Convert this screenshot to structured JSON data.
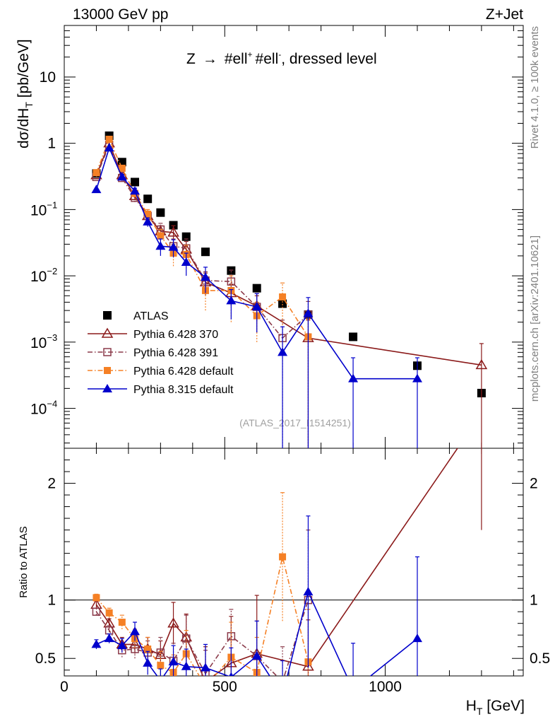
{
  "header": {
    "left": "13000 GeV pp",
    "right": "Z+Jet"
  },
  "side_text": {
    "rivet": "Rivet 4.1.0, ≥ 100k events",
    "mcplots": "mcplots.cern.ch [arXiv:2401.10621]"
  },
  "chart_data": [
    {
      "type": "scatter",
      "panel": "main",
      "title": "Z → #ell⁺ #ell⁻, dressed level",
      "title_parts": {
        "z": "Z",
        "arrow": "→",
        "ell1": "#ell",
        "sup1": "+",
        "ell2": "#ell",
        "sup2": "-",
        "rest": ", dressed level"
      },
      "ylabel": "dσ/dH_T [pb/GeV]",
      "ylabel_parts": {
        "main": "dσ/dH",
        "sub": "T",
        "unit": " [pb/GeV]"
      },
      "yscale": "log",
      "ylim": [
        2.5e-05,
        60
      ],
      "xlim": [
        0,
        1430
      ],
      "y_tick_labels": [
        {
          "value": 10,
          "text": "10"
        },
        {
          "value": 1,
          "text": "1"
        },
        {
          "value": 0.1,
          "base": "10",
          "exp": "−1"
        },
        {
          "value": 0.01,
          "base": "10",
          "exp": "−2"
        },
        {
          "value": 0.001,
          "base": "10",
          "exp": "−3"
        },
        {
          "value": 0.0001,
          "base": "10",
          "exp": "−4"
        }
      ],
      "watermark": "(ATLAS_2017_I1514251)",
      "legend_position": "bottom-left",
      "series": [
        {
          "name": "ATLAS",
          "color": "#000000",
          "marker": "square",
          "line": "none",
          "x": [
            100,
            140,
            180,
            220,
            260,
            300,
            340,
            380,
            440,
            520,
            600,
            680,
            760,
            900,
            1100,
            1300
          ],
          "y": [
            0.35,
            1.3,
            0.52,
            0.26,
            0.145,
            0.09,
            0.058,
            0.039,
            0.023,
            0.012,
            0.0065,
            0.0038,
            0.0026,
            0.0012,
            0.00044,
            0.00017
          ]
        },
        {
          "name": "Pythia 6.428 370",
          "color": "#8b1a1a",
          "marker": "open-triangle",
          "line": "solid",
          "x": [
            100,
            140,
            180,
            220,
            260,
            300,
            340,
            380,
            440,
            520,
            600,
            760,
            1300
          ],
          "y": [
            0.33,
            1.0,
            0.33,
            0.16,
            0.08,
            0.047,
            0.045,
            0.025,
            0.008,
            0.0055,
            0.0035,
            0.00115,
            0.00045
          ],
          "err_hi": [
            0.0,
            0.0,
            0.03,
            0.02,
            0.012,
            0.01,
            0.012,
            0.008,
            0.003,
            0.002,
            0.0015,
            0.001,
            0.0005
          ],
          "err_lo": [
            0.0,
            0.0,
            0.03,
            0.02,
            0.012,
            0.01,
            0.012,
            0.008,
            0.003,
            0.002,
            0.0015,
            0.00114,
            0.00045
          ]
        },
        {
          "name": "Pythia 6.428 391",
          "color": "#8b3a4a",
          "marker": "open-square",
          "line": "dashdot",
          "x": [
            100,
            140,
            180,
            220,
            260,
            300,
            340,
            380,
            440,
            520,
            600,
            680,
            760
          ],
          "y": [
            0.31,
            0.95,
            0.3,
            0.15,
            0.08,
            0.05,
            0.028,
            0.026,
            0.0085,
            0.0082,
            0.0034,
            0.00115,
            0.0026
          ],
          "err_hi": [
            0.0,
            0.0,
            0.03,
            0.02,
            0.015,
            0.012,
            0.008,
            0.01,
            0.003,
            0.004,
            0.002,
            0.001,
            0.0015
          ],
          "err_lo": [
            0.0,
            0.0,
            0.03,
            0.02,
            0.015,
            0.012,
            0.008,
            0.01,
            0.003,
            0.004,
            0.002,
            0.00114,
            0.00259
          ]
        },
        {
          "name": "Pythia 6.428 default",
          "color": "#f58025",
          "marker": "filled-square",
          "line": "dashdot",
          "x": [
            100,
            140,
            180,
            220,
            260,
            300,
            340,
            380,
            440,
            520,
            600,
            680,
            760
          ],
          "y": [
            0.36,
            1.15,
            0.42,
            0.175,
            0.085,
            0.04,
            0.022,
            0.021,
            0.006,
            0.006,
            0.0025,
            0.0048,
            0.0012
          ],
          "err_hi": [
            0.0,
            0.0,
            0.04,
            0.02,
            0.015,
            0.01,
            0.008,
            0.008,
            0.003,
            0.004,
            0.0015,
            0.003,
            0.001
          ],
          "err_lo": [
            0.0,
            0.0,
            0.04,
            0.02,
            0.015,
            0.01,
            0.008,
            0.008,
            0.003,
            0.004,
            0.0015,
            0.003,
            0.00119
          ]
        },
        {
          "name": "Pythia 8.315 default",
          "color": "#0000cc",
          "marker": "filled-triangle",
          "line": "solid",
          "x": [
            100,
            140,
            180,
            220,
            260,
            300,
            340,
            380,
            440,
            520,
            600,
            680,
            760,
            900,
            1100
          ],
          "y": [
            0.2,
            0.85,
            0.31,
            0.19,
            0.065,
            0.028,
            0.027,
            0.016,
            0.0095,
            0.0042,
            0.0034,
            0.0007,
            0.0027,
            0.00028,
            0.00028
          ],
          "err_hi": [
            0.0,
            0.0,
            0.03,
            0.02,
            0.01,
            0.008,
            0.008,
            0.006,
            0.004,
            0.002,
            0.002,
            0.001,
            0.002,
            0.0003,
            0.0003
          ],
          "err_lo": [
            0.0,
            0.0,
            0.03,
            0.02,
            0.01,
            0.008,
            0.008,
            0.006,
            0.004,
            0.002,
            0.002,
            0.00069,
            0.00269,
            0.00027,
            0.00027
          ]
        }
      ]
    },
    {
      "type": "line",
      "panel": "ratio",
      "ylabel": "Ratio to ATLAS",
      "xlabel": "H_T [GeV]",
      "xlabel_parts": {
        "main": "H",
        "sub": "T",
        "unit": " [GeV]"
      },
      "ylim": [
        0.35,
        2.3
      ],
      "xlim": [
        0,
        1430
      ],
      "y_ticks": [
        0.5,
        1,
        2
      ],
      "y_tick_labels": [
        "0.5",
        "1",
        "2"
      ],
      "x_ticks": [
        0,
        500,
        1000
      ],
      "x_tick_labels": [
        "0",
        "500",
        "1000"
      ],
      "reference_line": 1,
      "series": [
        {
          "name": "Pythia 6.428 370",
          "x": [
            100,
            140,
            180,
            220,
            260,
            300,
            340,
            380,
            440,
            520,
            600,
            760,
            1300
          ],
          "y": [
            0.96,
            0.8,
            0.62,
            0.62,
            0.58,
            0.53,
            0.8,
            0.68,
            0.3,
            0.46,
            0.54,
            0.43,
            2.6
          ],
          "err": [
            0.03,
            0.04,
            0.06,
            0.08,
            0.1,
            0.12,
            0.18,
            0.2,
            0.3,
            0.4,
            0.5,
            0.4,
            1.0
          ]
        },
        {
          "name": "Pythia 6.428 391",
          "x": [
            100,
            140,
            180,
            220,
            260,
            300,
            340,
            380,
            440,
            520,
            600,
            680,
            760
          ],
          "y": [
            0.9,
            0.74,
            0.57,
            0.58,
            0.55,
            0.55,
            0.48,
            0.67,
            0.37,
            0.69,
            0.52,
            0.3,
            1.0
          ],
          "err": [
            0.03,
            0.04,
            0.06,
            0.08,
            0.1,
            0.13,
            0.15,
            0.2,
            0.2,
            0.23,
            0.3,
            0.3,
            0.6
          ]
        },
        {
          "name": "Pythia 6.428 default",
          "x": [
            100,
            140,
            180,
            220,
            260,
            300,
            340,
            380,
            440,
            520,
            600,
            680,
            760
          ],
          "y": [
            1.02,
            0.89,
            0.81,
            0.67,
            0.58,
            0.44,
            0.38,
            0.54,
            0.26,
            0.51,
            0.38,
            1.37,
            0.47
          ],
          "err": [
            0.03,
            0.04,
            0.06,
            0.08,
            0.1,
            0.12,
            0.15,
            0.2,
            0.15,
            0.3,
            0.3,
            0.55,
            0.45
          ]
        },
        {
          "name": "Pythia 8.315 default",
          "x": [
            100,
            140,
            180,
            220,
            260,
            300,
            340,
            380,
            440,
            520,
            600,
            680,
            760,
            900,
            1100
          ],
          "y": [
            0.62,
            0.67,
            0.61,
            0.73,
            0.46,
            0.31,
            0.47,
            0.43,
            0.42,
            0.34,
            0.52,
            0.18,
            1.07,
            0.23,
            0.67
          ],
          "err": [
            0.04,
            0.04,
            0.06,
            0.08,
            0.1,
            0.1,
            0.14,
            0.15,
            0.2,
            0.25,
            0.3,
            0.3,
            0.65,
            0.4,
            0.7
          ]
        }
      ]
    }
  ]
}
